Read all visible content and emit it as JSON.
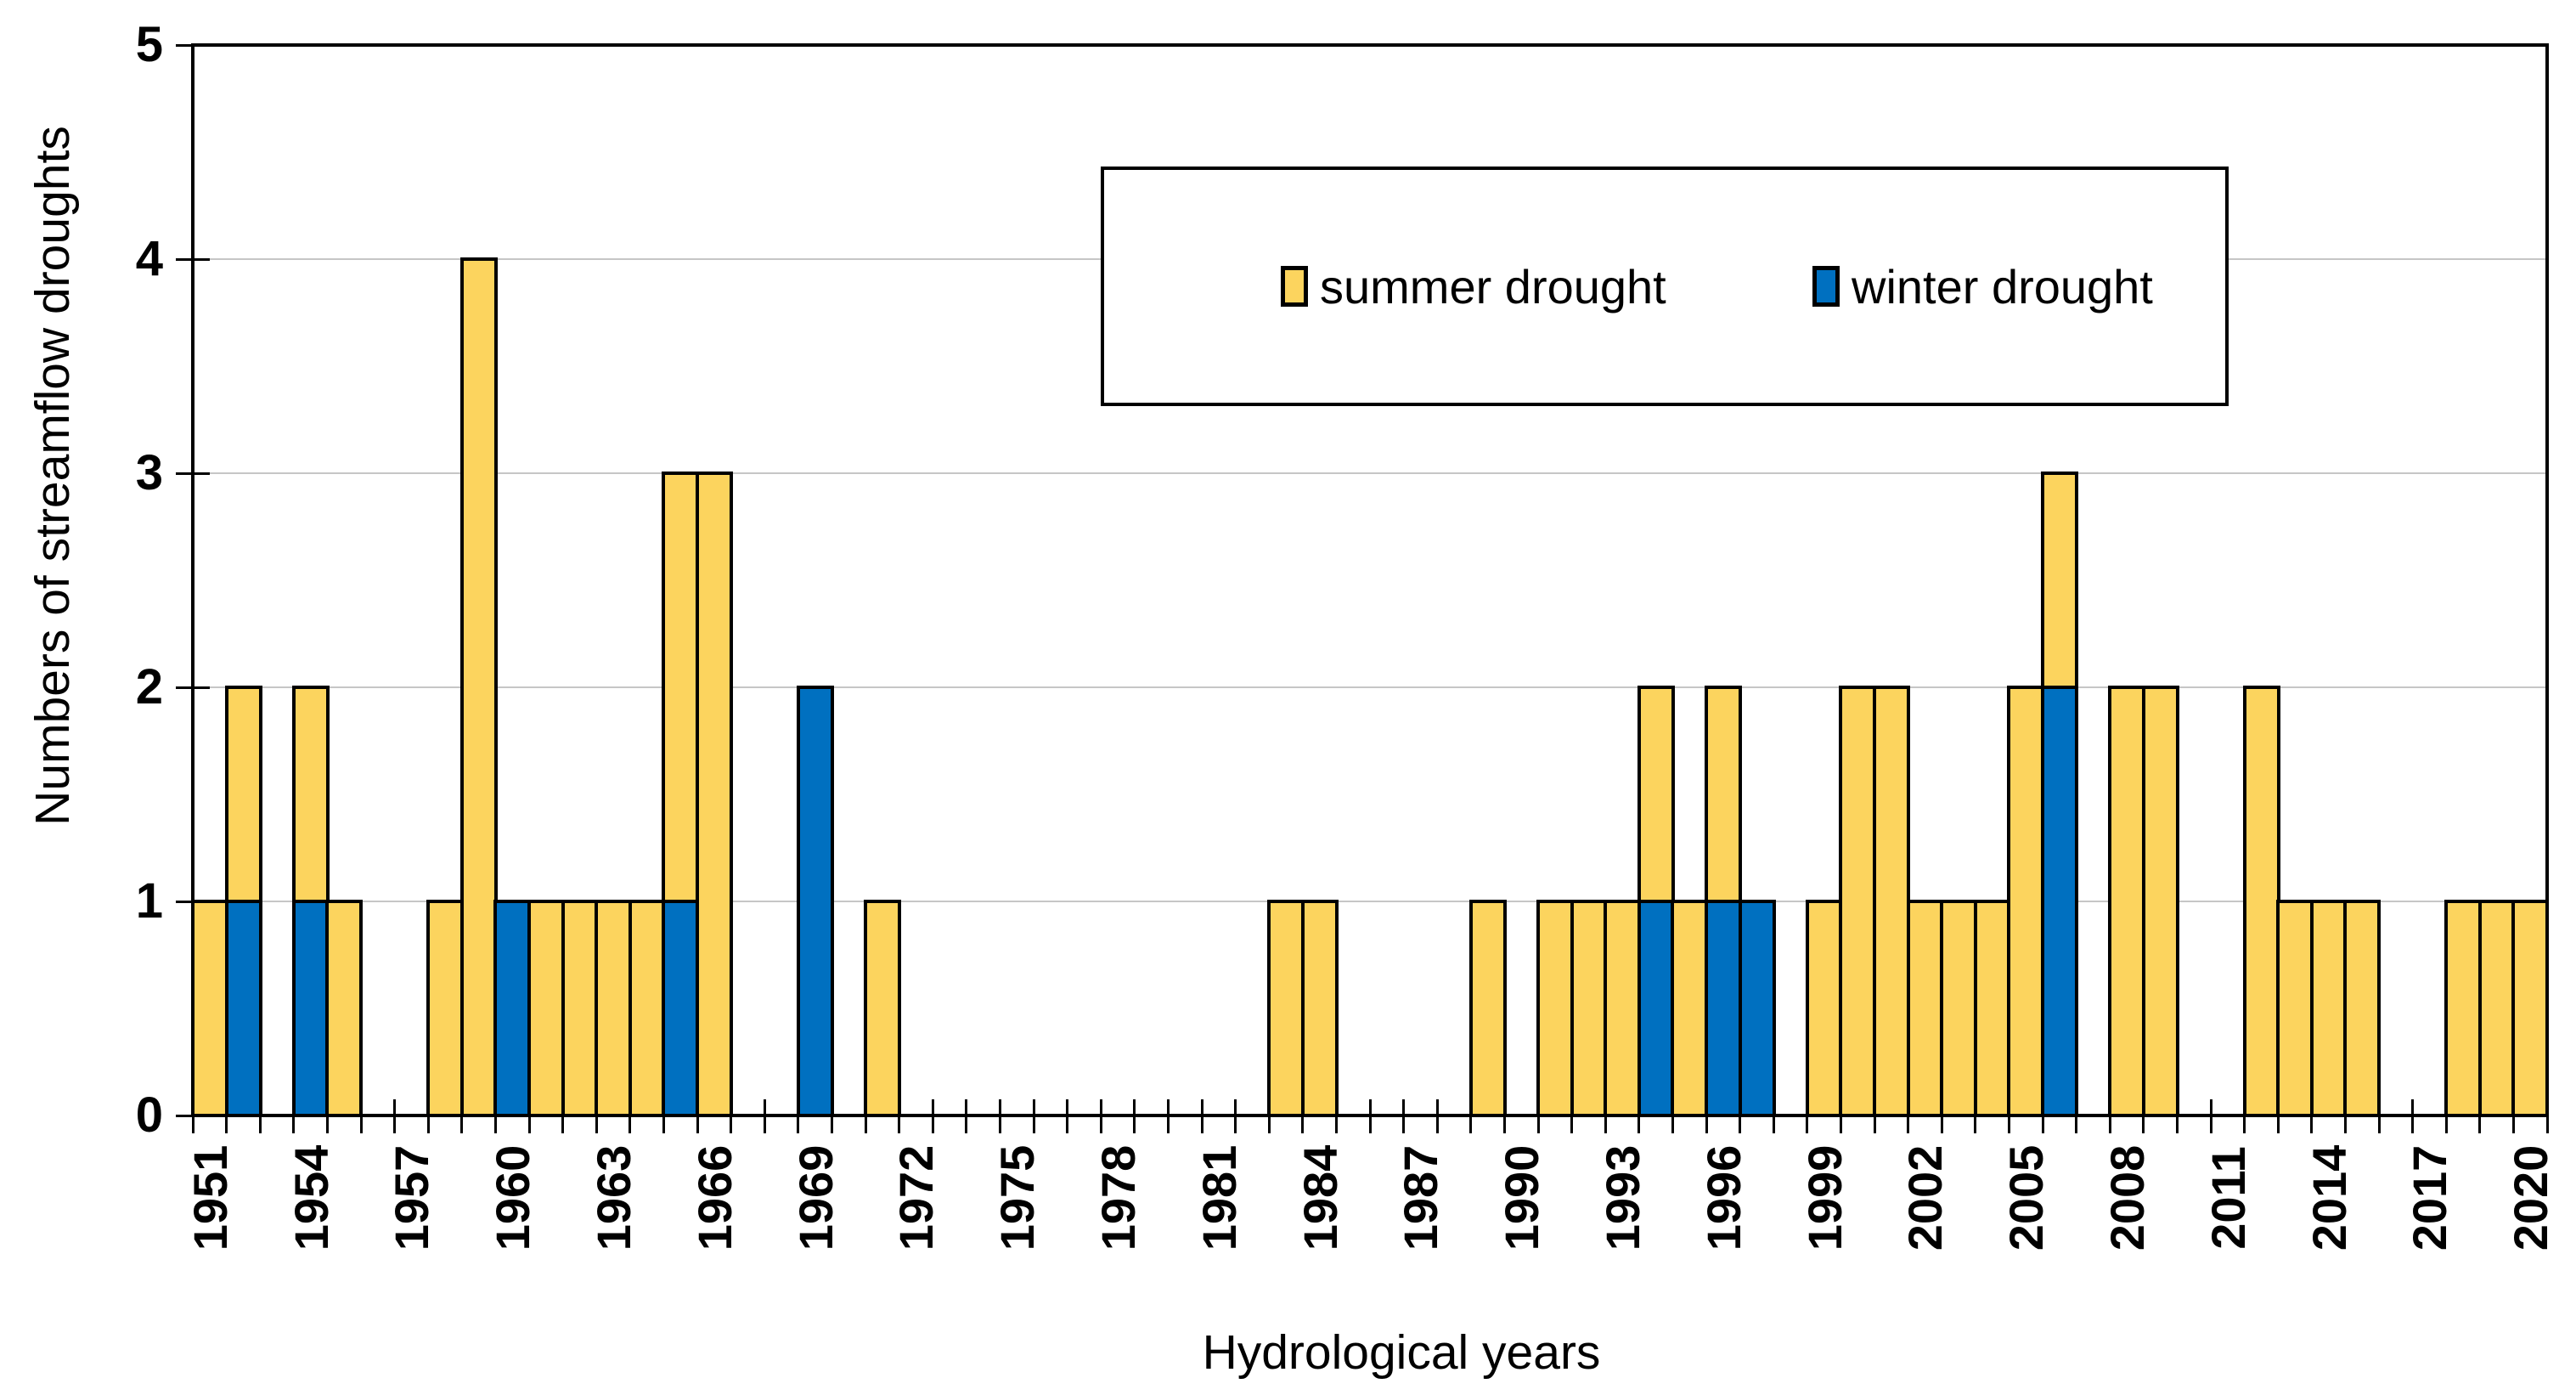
{
  "chart_data": {
    "type": "bar",
    "stacked": true,
    "title": "",
    "xlabel": "Hydrological years",
    "ylabel": "Numbers of streamflow droughts",
    "ylim": [
      0,
      5
    ],
    "y_ticks": [
      0,
      1,
      2,
      3,
      4,
      5
    ],
    "grid": true,
    "gridline_color": "#C6C6C6",
    "legend_position": "inside-top-right-box",
    "x_label_every": 3,
    "categories": [
      1951,
      1952,
      1953,
      1954,
      1955,
      1956,
      1957,
      1958,
      1959,
      1960,
      1961,
      1962,
      1963,
      1964,
      1965,
      1966,
      1967,
      1968,
      1969,
      1970,
      1971,
      1972,
      1973,
      1974,
      1975,
      1976,
      1977,
      1978,
      1979,
      1980,
      1981,
      1982,
      1983,
      1984,
      1985,
      1986,
      1987,
      1988,
      1989,
      1990,
      1991,
      1992,
      1993,
      1994,
      1995,
      1996,
      1997,
      1998,
      1999,
      2000,
      2001,
      2002,
      2003,
      2004,
      2005,
      2006,
      2007,
      2008,
      2009,
      2010,
      2011,
      2012,
      2013,
      2014,
      2015,
      2016,
      2017,
      2018,
      2019,
      2020
    ],
    "series": [
      {
        "name": "summer drought",
        "color": "#FCD45E",
        "stack_order": "top",
        "values": [
          1,
          1,
          0,
          1,
          1,
          0,
          0,
          1,
          4,
          0,
          1,
          1,
          1,
          1,
          2,
          3,
          0,
          0,
          0,
          0,
          1,
          0,
          0,
          0,
          0,
          0,
          0,
          0,
          0,
          0,
          0,
          0,
          1,
          1,
          0,
          0,
          0,
          0,
          1,
          0,
          1,
          1,
          1,
          1,
          1,
          1,
          0,
          0,
          1,
          2,
          2,
          1,
          1,
          1,
          2,
          1,
          0,
          2,
          2,
          0,
          0,
          2,
          1,
          1,
          1,
          0,
          0,
          1,
          1,
          1
        ]
      },
      {
        "name": "winter drought",
        "color": "#0070C0",
        "stack_order": "bottom",
        "values": [
          0,
          1,
          0,
          1,
          0,
          0,
          0,
          0,
          0,
          1,
          0,
          0,
          0,
          0,
          1,
          0,
          0,
          0,
          2,
          0,
          0,
          0,
          0,
          0,
          0,
          0,
          0,
          0,
          0,
          0,
          0,
          0,
          0,
          0,
          0,
          0,
          0,
          0,
          0,
          0,
          0,
          0,
          0,
          1,
          0,
          1,
          1,
          0,
          0,
          0,
          0,
          0,
          0,
          0,
          0,
          2,
          0,
          0,
          0,
          0,
          0,
          0,
          0,
          0,
          0,
          0,
          0,
          0,
          0,
          0
        ]
      }
    ]
  },
  "axes": {
    "x_title": "Hydrological years",
    "y_title": "Numbers of streamflow droughts"
  },
  "legend": {
    "items": [
      {
        "label": "summer drought",
        "color": "#FCD45E"
      },
      {
        "label": "winter drought",
        "color": "#0070C0"
      }
    ]
  }
}
